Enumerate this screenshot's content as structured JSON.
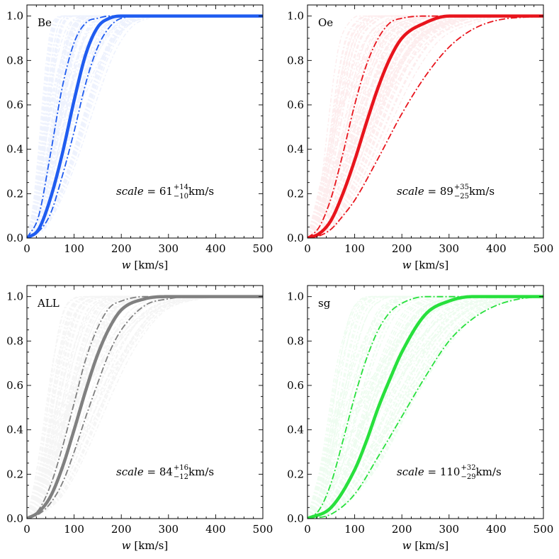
{
  "chart_data": [
    {
      "type": "line",
      "panel_label": "Be",
      "xlabel_var": "w",
      "xlabel_unit": " [km/s]",
      "xlim": [
        0,
        500
      ],
      "ylim": [
        0,
        1.05
      ],
      "xticks": [
        "0",
        "100",
        "200",
        "300",
        "400",
        "500"
      ],
      "yticks": [
        "0.0",
        "0.2",
        "0.4",
        "0.6",
        "0.8",
        "1.0"
      ],
      "color": "#1f5cf0",
      "annotation": {
        "prefix": "scale",
        "eq": " = ",
        "value": "61",
        "sup": "+14",
        "sub": "−10",
        "unit": " km/s"
      },
      "series": [
        {
          "role": "median",
          "style": "solid",
          "x": [
            0,
            25,
            50,
            75,
            100,
            125,
            150,
            175,
            200,
            250,
            300,
            500
          ],
          "y": [
            0,
            0.04,
            0.18,
            0.38,
            0.62,
            0.83,
            0.95,
            0.99,
            1.0,
            1.0,
            1.0,
            1.0
          ]
        },
        {
          "role": "lower",
          "style": "dashdot",
          "x": [
            0,
            25,
            50,
            75,
            100,
            125,
            150,
            175,
            200,
            250,
            300,
            500
          ],
          "y": [
            0,
            0.03,
            0.11,
            0.28,
            0.48,
            0.7,
            0.86,
            0.95,
            0.99,
            1.0,
            1.0,
            1.0
          ]
        },
        {
          "role": "upper",
          "style": "dashdot",
          "x": [
            0,
            25,
            50,
            75,
            100,
            125,
            150,
            175,
            200,
            250,
            300,
            500
          ],
          "y": [
            0,
            0.1,
            0.38,
            0.68,
            0.88,
            0.97,
            0.99,
            1.0,
            1.0,
            1.0,
            1.0,
            1.0
          ]
        }
      ]
    },
    {
      "type": "line",
      "panel_label": "Oe",
      "xlabel_var": "w",
      "xlabel_unit": " [km/s]",
      "xlim": [
        0,
        500
      ],
      "ylim": [
        0,
        1.05
      ],
      "xticks": [
        "0",
        "100",
        "200",
        "300",
        "400",
        "500"
      ],
      "yticks": [
        "0.0",
        "0.2",
        "0.4",
        "0.6",
        "0.8",
        "1.0"
      ],
      "color": "#e8141c",
      "annotation": {
        "prefix": "scale",
        "eq": " = ",
        "value": "89",
        "sup": "+35",
        "sub": "−25",
        "unit": " km/s"
      },
      "series": [
        {
          "role": "median",
          "style": "solid",
          "x": [
            0,
            25,
            50,
            75,
            100,
            125,
            150,
            175,
            200,
            250,
            300,
            350,
            500
          ],
          "y": [
            0,
            0.02,
            0.08,
            0.2,
            0.35,
            0.52,
            0.68,
            0.81,
            0.9,
            0.97,
            1.0,
            1.0,
            1.0
          ]
        },
        {
          "role": "lower",
          "style": "dashdot",
          "x": [
            0,
            25,
            50,
            75,
            100,
            150,
            200,
            250,
            300,
            350,
            400,
            500
          ],
          "y": [
            0,
            0.01,
            0.04,
            0.1,
            0.17,
            0.36,
            0.56,
            0.73,
            0.86,
            0.94,
            0.98,
            1.0
          ]
        },
        {
          "role": "upper",
          "style": "dashdot",
          "x": [
            0,
            25,
            50,
            75,
            100,
            125,
            150,
            175,
            200,
            250,
            300,
            500
          ],
          "y": [
            0,
            0.05,
            0.18,
            0.38,
            0.6,
            0.78,
            0.9,
            0.97,
            0.99,
            1.0,
            1.0,
            1.0
          ]
        }
      ]
    },
    {
      "type": "line",
      "panel_label": "ALL",
      "xlabel_var": "w",
      "xlabel_unit": " [km/s]",
      "xlim": [
        0,
        500
      ],
      "ylim": [
        0,
        1.05
      ],
      "xticks": [
        "0",
        "100",
        "200",
        "300",
        "400",
        "500"
      ],
      "yticks": [
        "0.0",
        "0.2",
        "0.4",
        "0.6",
        "0.8",
        "1.0"
      ],
      "color": "#808080",
      "annotation": {
        "prefix": "scale",
        "eq": " = ",
        "value": "84",
        "sup": "+16",
        "sub": "−12",
        "unit": " km/s"
      },
      "series": [
        {
          "role": "median",
          "style": "solid",
          "x": [
            0,
            25,
            50,
            75,
            100,
            125,
            150,
            175,
            200,
            250,
            300,
            500
          ],
          "y": [
            0,
            0.03,
            0.1,
            0.23,
            0.4,
            0.58,
            0.74,
            0.86,
            0.94,
            0.99,
            1.0,
            1.0
          ]
        },
        {
          "role": "lower",
          "style": "dashdot",
          "x": [
            0,
            25,
            50,
            75,
            100,
            125,
            150,
            175,
            200,
            250,
            300,
            350,
            500
          ],
          "y": [
            0,
            0.02,
            0.07,
            0.16,
            0.3,
            0.46,
            0.61,
            0.75,
            0.85,
            0.96,
            0.99,
            1.0,
            1.0
          ]
        },
        {
          "role": "upper",
          "style": "dashdot",
          "x": [
            0,
            25,
            50,
            75,
            100,
            125,
            150,
            175,
            200,
            250,
            300,
            500
          ],
          "y": [
            0,
            0.04,
            0.15,
            0.32,
            0.52,
            0.72,
            0.86,
            0.95,
            0.98,
            1.0,
            1.0,
            1.0
          ]
        }
      ]
    },
    {
      "type": "line",
      "panel_label": "sg",
      "xlabel_var": "w",
      "xlabel_unit": " [km/s]",
      "xlim": [
        0,
        500
      ],
      "ylim": [
        0,
        1.05
      ],
      "xticks": [
        "0",
        "100",
        "200",
        "300",
        "400",
        "500"
      ],
      "yticks": [
        "0.0",
        "0.2",
        "0.4",
        "0.6",
        "0.8",
        "1.0"
      ],
      "color": "#27e03c",
      "annotation": {
        "prefix": "scale",
        "eq": " = ",
        "value": "110",
        "sup": "+32",
        "sub": "−29",
        "unit": " km/s"
      },
      "series": [
        {
          "role": "median",
          "style": "solid",
          "x": [
            0,
            50,
            100,
            125,
            150,
            175,
            200,
            250,
            300,
            350,
            400,
            500
          ],
          "y": [
            0,
            0.05,
            0.22,
            0.35,
            0.5,
            0.63,
            0.75,
            0.92,
            0.98,
            1.0,
            1.0,
            1.0
          ]
        },
        {
          "role": "lower",
          "style": "dashdot",
          "x": [
            0,
            50,
            100,
            150,
            200,
            250,
            300,
            350,
            400,
            450,
            500
          ],
          "y": [
            0,
            0.02,
            0.11,
            0.28,
            0.46,
            0.64,
            0.8,
            0.9,
            0.96,
            0.99,
            1.0
          ]
        },
        {
          "role": "upper",
          "style": "dashdot",
          "x": [
            0,
            25,
            50,
            75,
            100,
            125,
            150,
            175,
            200,
            250,
            300,
            500
          ],
          "y": [
            0,
            0.04,
            0.16,
            0.35,
            0.55,
            0.72,
            0.85,
            0.93,
            0.97,
            1.0,
            1.0,
            1.0
          ]
        }
      ]
    }
  ]
}
